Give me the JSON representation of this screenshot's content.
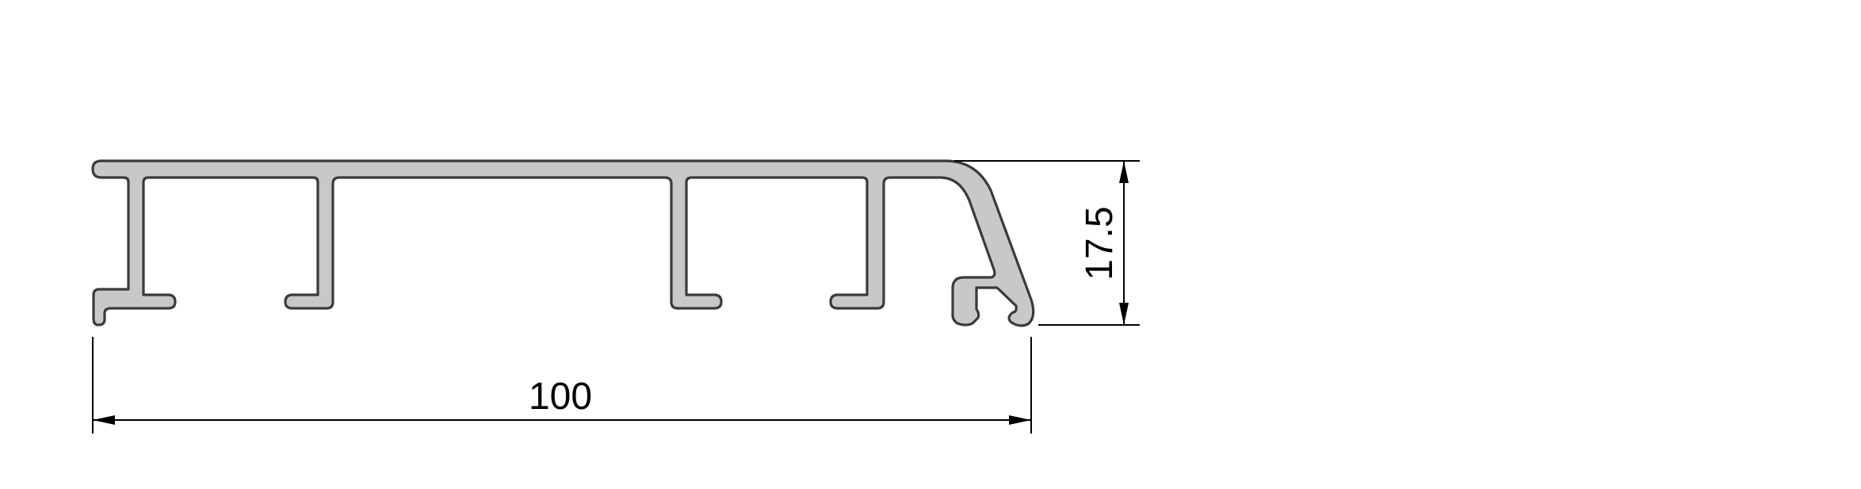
{
  "drawing": {
    "type": "profile cross-section",
    "fill_color": "#c8c8c8",
    "outline_color": "#3a3a3a",
    "dimension_color": "#000000"
  },
  "dimensions": {
    "width": "100",
    "height": "17.5"
  }
}
